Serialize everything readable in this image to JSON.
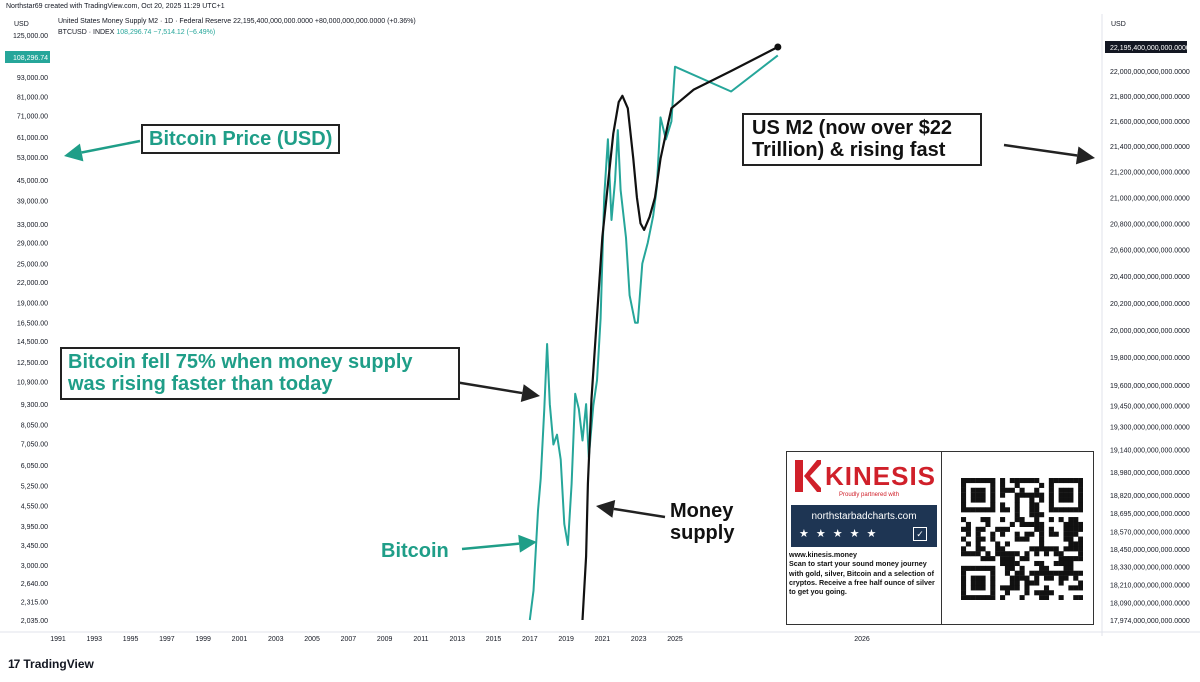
{
  "header": {
    "caption": "Northstar69 created with TradingView.com, Oct 20, 2025 11:29 UTC+1",
    "unit_left": "USD",
    "unit_right": "USD",
    "legend": [
      {
        "name": "United States Money Supply M2 · 1D · Federal Reserve",
        "value": "22,195,400,000,000.0000",
        "change": "+80,000,000,000.0000 (+0.36%)"
      },
      {
        "name": "BTCUSD · INDEX",
        "value": "108,296.74",
        "change": "−7,514.12 (−6.49%)"
      }
    ]
  },
  "chart_data": {
    "type": "line",
    "xlabel": "",
    "x_ticks": [
      "1991",
      "1993",
      "1995",
      "1997",
      "1999",
      "2001",
      "2003",
      "2005",
      "2007",
      "2009",
      "2011",
      "2013",
      "2015",
      "2017",
      "2019",
      "2021",
      "2023",
      "2025",
      "2026"
    ],
    "left_axis": {
      "scale": "log",
      "ticks": [
        "125,000.00",
        "108,296.74",
        "93,000.00",
        "81,000.00",
        "71,000.00",
        "61,000.00",
        "53,000.00",
        "45,000.00",
        "39,000.00",
        "33,000.00",
        "29,000.00",
        "25,000.00",
        "22,000.00",
        "19,000.00",
        "16,500.00",
        "14,500.00",
        "12,500.00",
        "10,900.00",
        "9,300.00",
        "8,050.00",
        "7,050.00",
        "6,050.00",
        "5,250.00",
        "4,550.00",
        "3,950.00",
        "3,450.00",
        "3,000.00",
        "2,640.00",
        "2,315.00",
        "2,035.00"
      ],
      "current_value_label": "108,296.74"
    },
    "right_axis": {
      "scale": "log",
      "ticks": [
        "22,195,400,000,000.0000",
        "22,000,000,000,000.0000",
        "21,800,000,000,000.0000",
        "21,600,000,000,000.0000",
        "21,400,000,000,000.0000",
        "21,200,000,000,000.0000",
        "21,000,000,000,000.0000",
        "20,800,000,000,000.0000",
        "20,600,000,000,000.0000",
        "20,400,000,000,000.0000",
        "20,200,000,000,000.0000",
        "20,000,000,000,000.0000",
        "19,800,000,000,000.0000",
        "19,600,000,000,000.0000",
        "19,450,000,000,000.0000",
        "19,300,000,000,000.0000",
        "19,140,000,000,000.0000",
        "18,980,000,000,000.0000",
        "18,820,000,000,000.0000",
        "18,695,000,000,000.0000",
        "18,570,000,000,000.0000",
        "18,450,000,000,000.0000",
        "18,330,000,000,000.0000",
        "18,210,000,000,000.0000",
        "18,090,000,000,000.0000",
        "17,974,000,000,000.0000"
      ],
      "current_value_label": "22,195,400,000,000.0000"
    },
    "series": [
      {
        "name": "BTCUSD · INDEX",
        "color": "#26a69a",
        "points": [
          [
            2017.0,
            2035
          ],
          [
            2017.2,
            2500
          ],
          [
            2017.45,
            4400
          ],
          [
            2017.6,
            5500
          ],
          [
            2017.8,
            9000
          ],
          [
            2017.95,
            14200
          ],
          [
            2018.1,
            9300
          ],
          [
            2018.3,
            7000
          ],
          [
            2018.5,
            7500
          ],
          [
            2018.7,
            6300
          ],
          [
            2018.9,
            4000
          ],
          [
            2019.1,
            3450
          ],
          [
            2019.3,
            5300
          ],
          [
            2019.5,
            10000
          ],
          [
            2019.7,
            9000
          ],
          [
            2019.9,
            7200
          ],
          [
            2020.1,
            9300
          ],
          [
            2020.25,
            6400
          ],
          [
            2020.5,
            9200
          ],
          [
            2020.7,
            11000
          ],
          [
            2020.9,
            17000
          ],
          [
            2021.1,
            40000
          ],
          [
            2021.3,
            60000
          ],
          [
            2021.5,
            34000
          ],
          [
            2021.7,
            45000
          ],
          [
            2021.85,
            64000
          ],
          [
            2022.0,
            42000
          ],
          [
            2022.3,
            30000
          ],
          [
            2022.5,
            20000
          ],
          [
            2022.8,
            16500
          ],
          [
            2022.95,
            16500
          ],
          [
            2023.2,
            25000
          ],
          [
            2023.5,
            29000
          ],
          [
            2023.8,
            35000
          ],
          [
            2024.0,
            43000
          ],
          [
            2024.2,
            70000
          ],
          [
            2024.5,
            60000
          ],
          [
            2024.8,
            68000
          ],
          [
            2025.0,
            100000
          ],
          [
            2025.3,
            84000
          ],
          [
            2025.55,
            108296.74
          ]
        ]
      },
      {
        "name": "United States Money Supply M2 · 1D · Federal Reserve",
        "color": "#111111",
        "points": [
          [
            2019.9,
            17.974
          ],
          [
            2020.1,
            18.4
          ],
          [
            2020.2,
            18.9
          ],
          [
            2020.4,
            19.5
          ],
          [
            2020.7,
            20.1
          ],
          [
            2021.0,
            20.7
          ],
          [
            2021.3,
            21.1
          ],
          [
            2021.6,
            21.5
          ],
          [
            2021.9,
            21.75
          ],
          [
            2022.1,
            21.8
          ],
          [
            2022.4,
            21.7
          ],
          [
            2022.7,
            21.3
          ],
          [
            2022.9,
            21.0
          ],
          [
            2023.1,
            20.8
          ],
          [
            2023.3,
            20.75
          ],
          [
            2023.6,
            20.85
          ],
          [
            2023.9,
            21.0
          ],
          [
            2024.2,
            21.3
          ],
          [
            2024.5,
            21.5
          ],
          [
            2024.8,
            21.7
          ],
          [
            2025.1,
            21.85
          ],
          [
            2025.3,
            22.0
          ],
          [
            2025.55,
            22.1954
          ]
        ]
      }
    ],
    "annotations": {
      "btc_price": "Bitcoin Price (USD)",
      "us_m2": "US M2 (now over $22 Trillion) & rising fast",
      "fell": "Bitcoin fell 75% when money supply was rising faster than today",
      "bitcoin": "Bitcoin",
      "money_supply": "Money supply"
    }
  },
  "ad": {
    "brand": "KINESIS",
    "tagline": "Proudly partnered with",
    "site": "northstarbadcharts.com",
    "stars": "★★★★★",
    "check": "✓",
    "url": "www.kinesis.money",
    "text": "Scan to start your sound money journey with gold, silver, Bitcoin and a selection of cryptos. Receive a free half ounce of silver to get you going."
  },
  "footer": {
    "brand": "TradingView",
    "logo": "17"
  },
  "colors": {
    "btc": "#26a69a",
    "m2": "#111111",
    "kinesis_red": "#d0202a",
    "nsb_navy": "#1e3553"
  }
}
